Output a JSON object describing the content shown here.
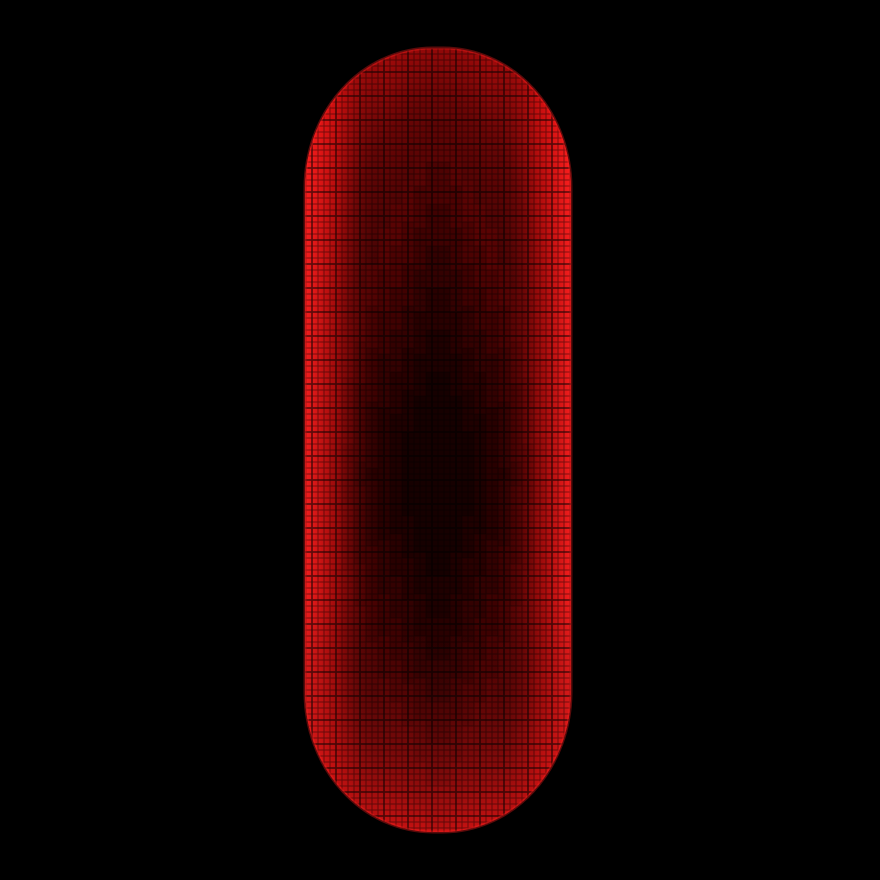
{
  "scene": {
    "description_label": "",
    "colors": {
      "background": "#000000",
      "edge": "#ff1a1a",
      "mid": "#8a0606",
      "core": "#2a0000",
      "grid": "#000000"
    },
    "object": {
      "kind": "red voxel capsule",
      "bands": 7
    }
  }
}
